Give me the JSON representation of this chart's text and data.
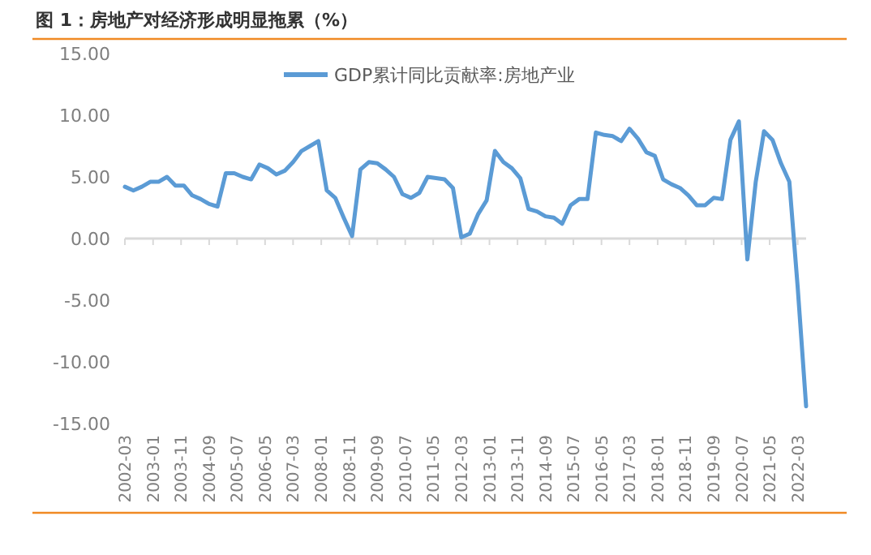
{
  "chart_data": {
    "type": "line",
    "title": "图 1：房地产对经济形成明显拖累（%）",
    "x": [
      "2002-03",
      "2002-06",
      "2002-09",
      "2002-12",
      "2003-03",
      "2003-06",
      "2003-09",
      "2003-12",
      "2004-03",
      "2004-06",
      "2004-09",
      "2004-12",
      "2005-03",
      "2005-06",
      "2005-09",
      "2005-12",
      "2006-03",
      "2006-06",
      "2006-09",
      "2006-12",
      "2007-03",
      "2007-06",
      "2007-09",
      "2007-12",
      "2008-03",
      "2008-06",
      "2008-09",
      "2008-12",
      "2009-03",
      "2009-06",
      "2009-09",
      "2009-12",
      "2010-03",
      "2010-06",
      "2010-09",
      "2010-12",
      "2011-03",
      "2011-06",
      "2011-09",
      "2011-12",
      "2012-03",
      "2012-06",
      "2012-09",
      "2012-12",
      "2013-03",
      "2013-06",
      "2013-09",
      "2013-12",
      "2014-03",
      "2014-06",
      "2014-09",
      "2014-12",
      "2015-03",
      "2015-06",
      "2015-09",
      "2015-12",
      "2016-03",
      "2016-06",
      "2016-09",
      "2016-12",
      "2017-03",
      "2017-06",
      "2017-09",
      "2017-12",
      "2018-03",
      "2018-06",
      "2018-09",
      "2018-12",
      "2019-03",
      "2019-06",
      "2019-09",
      "2019-12",
      "2020-03",
      "2020-06",
      "2020-09",
      "2020-12",
      "2021-03",
      "2021-06",
      "2021-09",
      "2021-12",
      "2022-03",
      "2022-06"
    ],
    "series": [
      {
        "name": "GDP累计同比贡献率:房地产业",
        "color": "#5b9bd5",
        "values": [
          4.2,
          3.9,
          4.2,
          4.6,
          4.6,
          5.0,
          4.3,
          4.3,
          3.5,
          3.2,
          2.8,
          2.6,
          5.3,
          5.3,
          5.0,
          4.8,
          6.0,
          5.7,
          5.2,
          5.5,
          6.2,
          7.1,
          7.5,
          7.9,
          3.9,
          3.3,
          1.7,
          0.2,
          5.6,
          6.2,
          6.1,
          5.6,
          5.0,
          3.6,
          3.3,
          3.7,
          5.0,
          4.9,
          4.8,
          4.1,
          0.1,
          0.4,
          2.0,
          3.1,
          7.1,
          6.2,
          5.7,
          4.9,
          2.4,
          2.2,
          1.8,
          1.7,
          1.2,
          2.7,
          3.2,
          3.2,
          8.6,
          8.4,
          8.3,
          7.9,
          8.9,
          8.1,
          7.0,
          6.7,
          4.8,
          4.4,
          4.1,
          3.5,
          2.7,
          2.7,
          3.3,
          3.2,
          8.0,
          9.5,
          -1.7,
          4.6,
          8.7,
          8.0,
          6.1,
          4.6,
          -3.9,
          -13.6
        ]
      }
    ],
    "xlim": [
      "2002-03",
      "2022-06"
    ],
    "xticks": [
      "2002-03",
      "2003-01",
      "2003-11",
      "2004-09",
      "2005-07",
      "2006-05",
      "2007-03",
      "2008-01",
      "2008-11",
      "2009-09",
      "2010-07",
      "2011-05",
      "2012-03",
      "2013-01",
      "2013-11",
      "2014-09",
      "2015-07",
      "2016-05",
      "2017-03",
      "2018-01",
      "2018-11",
      "2019-09",
      "2020-07",
      "2021-05",
      "2022-03"
    ],
    "ylim": [
      -15,
      15
    ],
    "yticks": [
      {
        "value": 15,
        "label": "15.00"
      },
      {
        "value": 10,
        "label": "10.00"
      },
      {
        "value": 5,
        "label": "5.00"
      },
      {
        "value": 0,
        "label": "0.00"
      },
      {
        "value": -5,
        "label": "-5.00"
      },
      {
        "value": -10,
        "label": "-10.00"
      },
      {
        "value": -15,
        "label": "-15.00"
      }
    ],
    "legend": "top",
    "marker": "none",
    "line_style": "solid"
  }
}
